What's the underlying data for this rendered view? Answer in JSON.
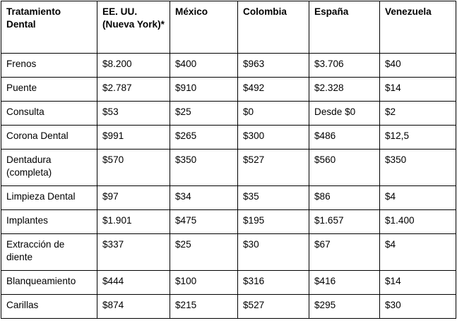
{
  "table": {
    "headers": [
      "Tratamiento Dental",
      "EE. UU. (Nueva York)*",
      "México",
      "Colombia",
      "España",
      "Venezuela"
    ],
    "rows": [
      [
        "Frenos",
        "$8.200",
        "$400",
        "$963",
        "$3.706",
        "$40"
      ],
      [
        "Puente",
        "$2.787",
        "$910",
        "$492",
        "$2.328",
        "$14"
      ],
      [
        "Consulta",
        "$53",
        "$25",
        "$0",
        "Desde $0",
        "$2"
      ],
      [
        "Corona Dental",
        "$991",
        "$265",
        "$300",
        "$486",
        "$12,5"
      ],
      [
        "Dentadura (completa)",
        "$570",
        "$350",
        "$527",
        "$560",
        "$350"
      ],
      [
        "Limpieza Dental",
        "$97",
        "$34",
        "$35",
        "$86",
        "$4"
      ],
      [
        "Implantes",
        "$1.901",
        "$475",
        "$195",
        "$1.657",
        "$1.400"
      ],
      [
        "Extracción de diente",
        "$337",
        "$25",
        "$30",
        "$67",
        "$4"
      ],
      [
        "Blanqueamiento",
        "$444",
        "$100",
        "$316",
        "$416",
        "$14"
      ],
      [
        "Carillas",
        "$874",
        "$215",
        "$527",
        "$295",
        "$30"
      ]
    ]
  }
}
